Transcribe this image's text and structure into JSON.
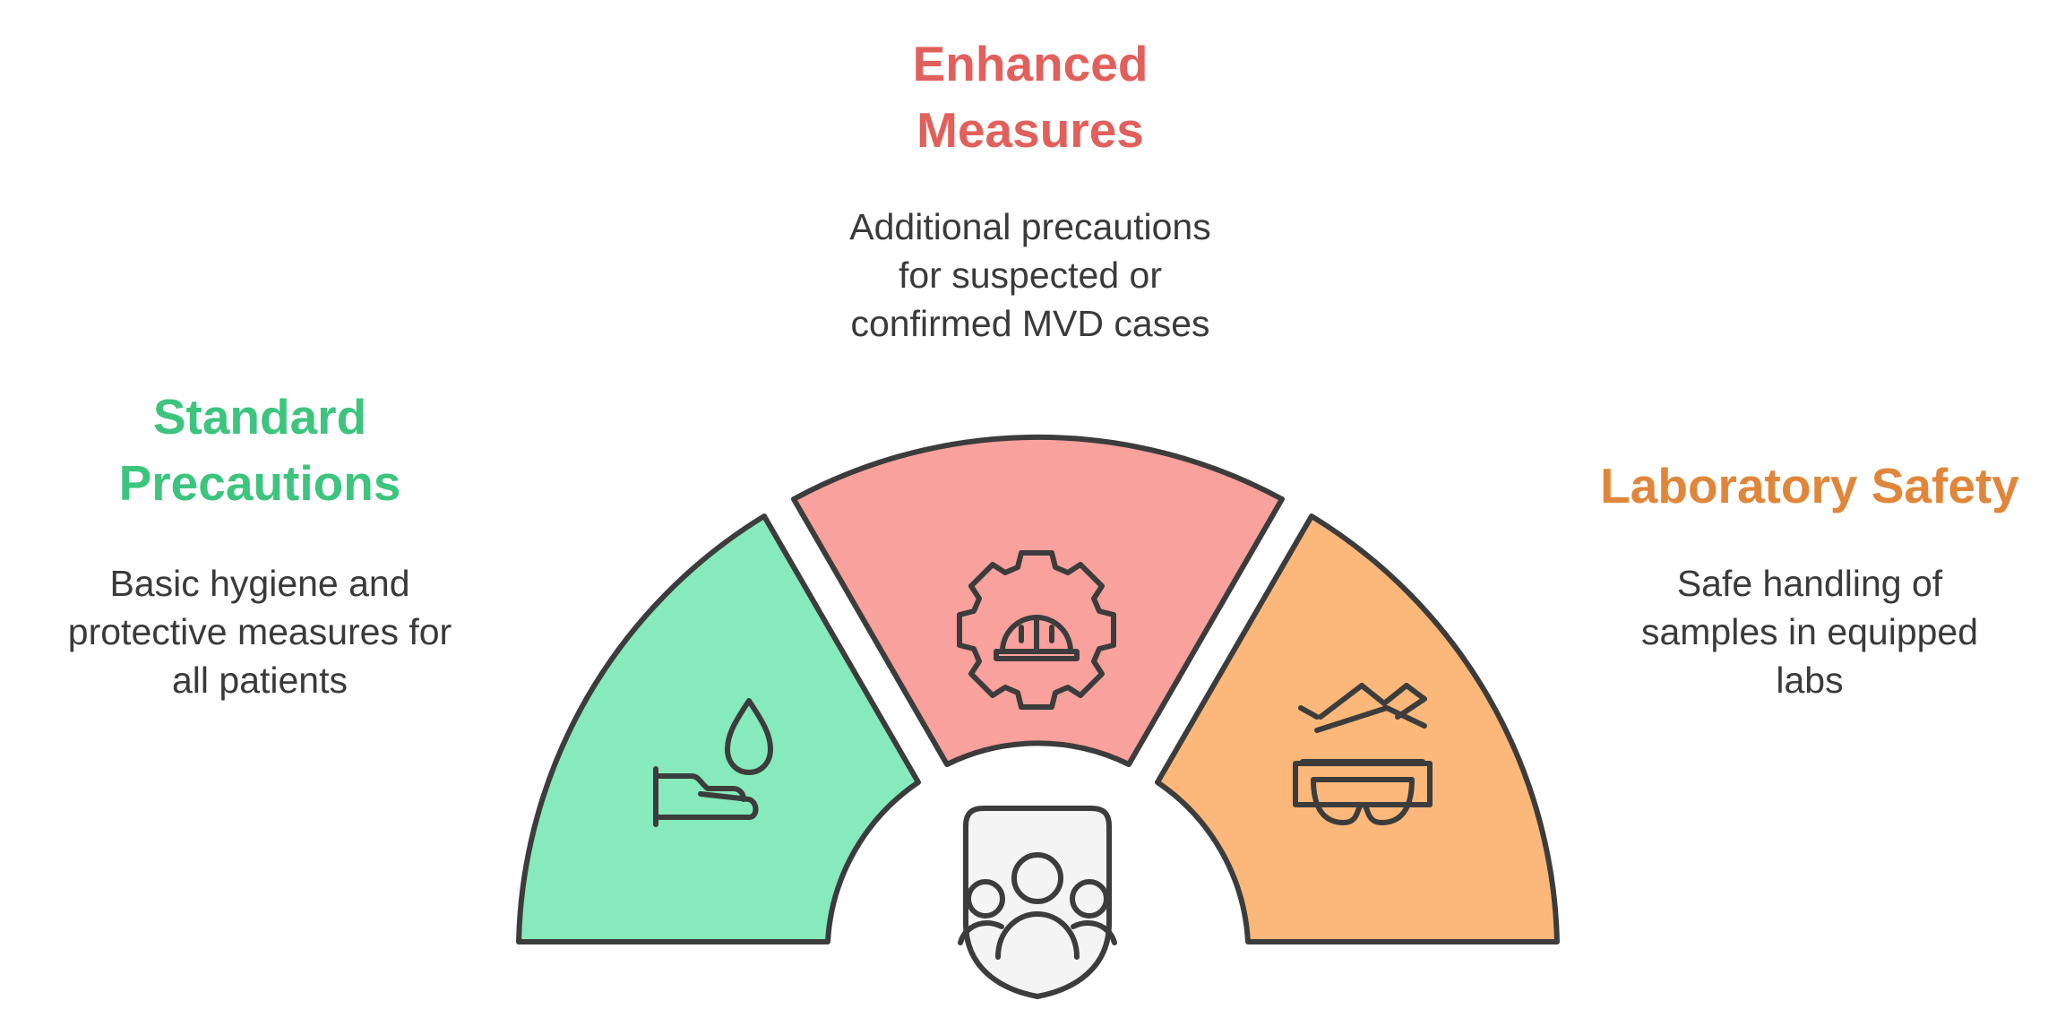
{
  "sections": {
    "standard": {
      "title_lines": [
        "Standard",
        "Precautions"
      ],
      "desc_lines": [
        "Basic hygiene and",
        "protective measures for",
        "all patients"
      ],
      "color": "#3dc47e",
      "fill": "#86eabc",
      "icon": "hand-wash-icon"
    },
    "enhanced": {
      "title_lines": [
        "Enhanced",
        "Measures"
      ],
      "desc_lines": [
        "Additional precautions",
        "for suspected or",
        "confirmed MVD cases"
      ],
      "color": "#e2605c",
      "fill": "#f9a19d",
      "icon": "gear-hardhat-icon"
    },
    "laboratory": {
      "title_lines": [
        "Laboratory Safety"
      ],
      "desc_lines": [
        "Safe handling of",
        "samples in equipped",
        "labs"
      ],
      "color": "#e0863a",
      "fill": "#fbb87a",
      "icon": "safety-goggles-icon"
    }
  },
  "center": {
    "icon": "shield-group-icon",
    "fill": "#f4f4f4"
  },
  "stroke_color": "#3c3c3c"
}
